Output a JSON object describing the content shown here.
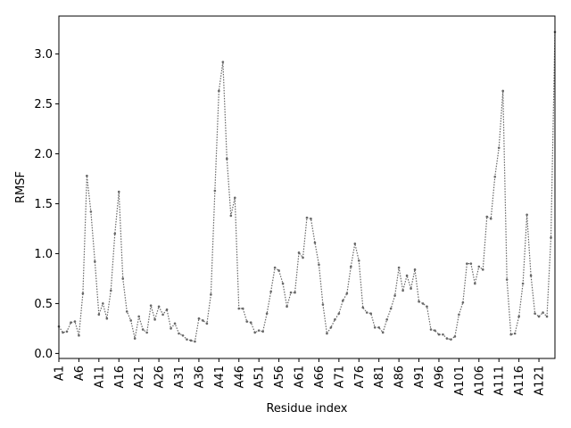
{
  "chart_data": {
    "type": "line",
    "title": "",
    "xlabel": "Residue index",
    "ylabel": "RMSF",
    "ylim": [
      -0.05,
      3.38
    ],
    "yticks": [
      0.0,
      0.5,
      1.0,
      1.5,
      2.0,
      2.5,
      3.0
    ],
    "ytick_labels": [
      "0.0",
      "0.5",
      "1.0",
      "1.5",
      "2.0",
      "2.5",
      "3.0"
    ],
    "xtick_labels": [
      "A1",
      "A6",
      "A11",
      "A16",
      "A21",
      "A26",
      "A31",
      "A36",
      "A41",
      "A46",
      "A51",
      "A56",
      "A61",
      "A66",
      "A71",
      "A76",
      "A81",
      "A86",
      "A91",
      "A96",
      "A101",
      "A106",
      "A111",
      "A116",
      "A121"
    ],
    "xtick_step": 5,
    "grid": false,
    "line_color": "#666666",
    "series": [
      {
        "values": [
          0.27,
          0.21,
          0.22,
          0.31,
          0.32,
          0.18,
          0.6,
          1.78,
          1.42,
          0.92,
          0.39,
          0.5,
          0.35,
          0.63,
          1.2,
          1.62,
          0.75,
          0.42,
          0.33,
          0.15,
          0.37,
          0.24,
          0.21,
          0.48,
          0.34,
          0.47,
          0.39,
          0.44,
          0.25,
          0.3,
          0.2,
          0.18,
          0.14,
          0.13,
          0.12,
          0.35,
          0.33,
          0.3,
          0.59,
          1.63,
          2.63,
          2.92,
          1.95,
          1.38,
          1.56,
          0.45,
          0.45,
          0.32,
          0.31,
          0.21,
          0.23,
          0.22,
          0.4,
          0.62,
          0.86,
          0.83,
          0.7,
          0.47,
          0.61,
          0.61,
          1.01,
          0.96,
          1.36,
          1.35,
          1.11,
          0.89,
          0.49,
          0.2,
          0.26,
          0.34,
          0.4,
          0.53,
          0.6,
          0.87,
          1.1,
          0.93,
          0.46,
          0.41,
          0.4,
          0.26,
          0.26,
          0.21,
          0.34,
          0.45,
          0.58,
          0.86,
          0.63,
          0.78,
          0.65,
          0.84,
          0.52,
          0.5,
          0.47,
          0.24,
          0.23,
          0.19,
          0.19,
          0.15,
          0.14,
          0.17,
          0.39,
          0.51,
          0.9,
          0.9,
          0.7,
          0.87,
          0.84,
          1.37,
          1.35,
          1.77,
          2.06,
          2.63,
          0.74,
          0.19,
          0.2,
          0.37,
          0.7,
          1.39,
          0.78,
          0.4,
          0.37,
          0.41,
          0.37,
          1.16,
          3.22
        ]
      }
    ]
  }
}
